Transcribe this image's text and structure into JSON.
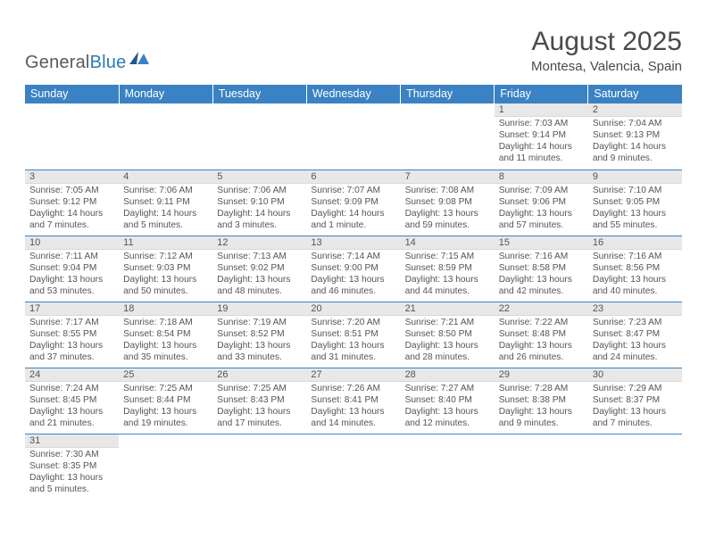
{
  "logo": {
    "text_a": "General",
    "text_b": "Blue"
  },
  "title": "August 2025",
  "location": "Montesa, Valencia, Spain",
  "colors": {
    "header_bg": "#3b82c4",
    "header_text": "#ffffff",
    "daynum_bg": "#e8e8e8",
    "row_border": "#3b82c4",
    "body_text": "#4a4a4a",
    "logo_blue": "#2a7ab8"
  },
  "weekdays": [
    "Sunday",
    "Monday",
    "Tuesday",
    "Wednesday",
    "Thursday",
    "Friday",
    "Saturday"
  ],
  "weeks": [
    [
      null,
      null,
      null,
      null,
      null,
      {
        "n": "1",
        "sr": "Sunrise: 7:03 AM",
        "ss": "Sunset: 9:14 PM",
        "dl": "Daylight: 14 hours and 11 minutes."
      },
      {
        "n": "2",
        "sr": "Sunrise: 7:04 AM",
        "ss": "Sunset: 9:13 PM",
        "dl": "Daylight: 14 hours and 9 minutes."
      }
    ],
    [
      {
        "n": "3",
        "sr": "Sunrise: 7:05 AM",
        "ss": "Sunset: 9:12 PM",
        "dl": "Daylight: 14 hours and 7 minutes."
      },
      {
        "n": "4",
        "sr": "Sunrise: 7:06 AM",
        "ss": "Sunset: 9:11 PM",
        "dl": "Daylight: 14 hours and 5 minutes."
      },
      {
        "n": "5",
        "sr": "Sunrise: 7:06 AM",
        "ss": "Sunset: 9:10 PM",
        "dl": "Daylight: 14 hours and 3 minutes."
      },
      {
        "n": "6",
        "sr": "Sunrise: 7:07 AM",
        "ss": "Sunset: 9:09 PM",
        "dl": "Daylight: 14 hours and 1 minute."
      },
      {
        "n": "7",
        "sr": "Sunrise: 7:08 AM",
        "ss": "Sunset: 9:08 PM",
        "dl": "Daylight: 13 hours and 59 minutes."
      },
      {
        "n": "8",
        "sr": "Sunrise: 7:09 AM",
        "ss": "Sunset: 9:06 PM",
        "dl": "Daylight: 13 hours and 57 minutes."
      },
      {
        "n": "9",
        "sr": "Sunrise: 7:10 AM",
        "ss": "Sunset: 9:05 PM",
        "dl": "Daylight: 13 hours and 55 minutes."
      }
    ],
    [
      {
        "n": "10",
        "sr": "Sunrise: 7:11 AM",
        "ss": "Sunset: 9:04 PM",
        "dl": "Daylight: 13 hours and 53 minutes."
      },
      {
        "n": "11",
        "sr": "Sunrise: 7:12 AM",
        "ss": "Sunset: 9:03 PM",
        "dl": "Daylight: 13 hours and 50 minutes."
      },
      {
        "n": "12",
        "sr": "Sunrise: 7:13 AM",
        "ss": "Sunset: 9:02 PM",
        "dl": "Daylight: 13 hours and 48 minutes."
      },
      {
        "n": "13",
        "sr": "Sunrise: 7:14 AM",
        "ss": "Sunset: 9:00 PM",
        "dl": "Daylight: 13 hours and 46 minutes."
      },
      {
        "n": "14",
        "sr": "Sunrise: 7:15 AM",
        "ss": "Sunset: 8:59 PM",
        "dl": "Daylight: 13 hours and 44 minutes."
      },
      {
        "n": "15",
        "sr": "Sunrise: 7:16 AM",
        "ss": "Sunset: 8:58 PM",
        "dl": "Daylight: 13 hours and 42 minutes."
      },
      {
        "n": "16",
        "sr": "Sunrise: 7:16 AM",
        "ss": "Sunset: 8:56 PM",
        "dl": "Daylight: 13 hours and 40 minutes."
      }
    ],
    [
      {
        "n": "17",
        "sr": "Sunrise: 7:17 AM",
        "ss": "Sunset: 8:55 PM",
        "dl": "Daylight: 13 hours and 37 minutes."
      },
      {
        "n": "18",
        "sr": "Sunrise: 7:18 AM",
        "ss": "Sunset: 8:54 PM",
        "dl": "Daylight: 13 hours and 35 minutes."
      },
      {
        "n": "19",
        "sr": "Sunrise: 7:19 AM",
        "ss": "Sunset: 8:52 PM",
        "dl": "Daylight: 13 hours and 33 minutes."
      },
      {
        "n": "20",
        "sr": "Sunrise: 7:20 AM",
        "ss": "Sunset: 8:51 PM",
        "dl": "Daylight: 13 hours and 31 minutes."
      },
      {
        "n": "21",
        "sr": "Sunrise: 7:21 AM",
        "ss": "Sunset: 8:50 PM",
        "dl": "Daylight: 13 hours and 28 minutes."
      },
      {
        "n": "22",
        "sr": "Sunrise: 7:22 AM",
        "ss": "Sunset: 8:48 PM",
        "dl": "Daylight: 13 hours and 26 minutes."
      },
      {
        "n": "23",
        "sr": "Sunrise: 7:23 AM",
        "ss": "Sunset: 8:47 PM",
        "dl": "Daylight: 13 hours and 24 minutes."
      }
    ],
    [
      {
        "n": "24",
        "sr": "Sunrise: 7:24 AM",
        "ss": "Sunset: 8:45 PM",
        "dl": "Daylight: 13 hours and 21 minutes."
      },
      {
        "n": "25",
        "sr": "Sunrise: 7:25 AM",
        "ss": "Sunset: 8:44 PM",
        "dl": "Daylight: 13 hours and 19 minutes."
      },
      {
        "n": "26",
        "sr": "Sunrise: 7:25 AM",
        "ss": "Sunset: 8:43 PM",
        "dl": "Daylight: 13 hours and 17 minutes."
      },
      {
        "n": "27",
        "sr": "Sunrise: 7:26 AM",
        "ss": "Sunset: 8:41 PM",
        "dl": "Daylight: 13 hours and 14 minutes."
      },
      {
        "n": "28",
        "sr": "Sunrise: 7:27 AM",
        "ss": "Sunset: 8:40 PM",
        "dl": "Daylight: 13 hours and 12 minutes."
      },
      {
        "n": "29",
        "sr": "Sunrise: 7:28 AM",
        "ss": "Sunset: 8:38 PM",
        "dl": "Daylight: 13 hours and 9 minutes."
      },
      {
        "n": "30",
        "sr": "Sunrise: 7:29 AM",
        "ss": "Sunset: 8:37 PM",
        "dl": "Daylight: 13 hours and 7 minutes."
      }
    ],
    [
      {
        "n": "31",
        "sr": "Sunrise: 7:30 AM",
        "ss": "Sunset: 8:35 PM",
        "dl": "Daylight: 13 hours and 5 minutes."
      },
      null,
      null,
      null,
      null,
      null,
      null
    ]
  ]
}
